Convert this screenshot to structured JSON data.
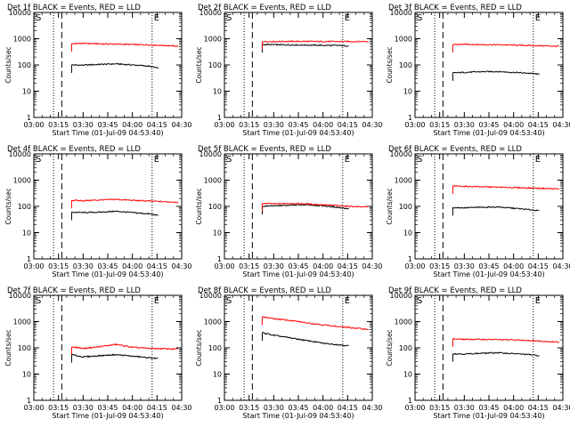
{
  "figure": {
    "background": "#ffffff",
    "ink_color": "#000000",
    "colors": {
      "events": "#000000",
      "lld": "#ff0000"
    },
    "x_tick_labels": [
      "03:00",
      "03:15",
      "03:30",
      "03:45",
      "04:00",
      "04:15",
      "04:30"
    ],
    "y_tick_labels": [
      "1",
      "10",
      "100",
      "1000",
      "10000"
    ]
  },
  "chart_data": [
    {
      "type": "line",
      "title": "Det 1f BLACK = Events, RED = LLD",
      "xlabel": "Start Time (01-Jul-09 04:53:40)",
      "ylabel": "Counts/sec",
      "xlim": [
        "03:00",
        "04:30"
      ],
      "ylim": [
        1,
        10000
      ],
      "y_scale": "log",
      "start_marker": "S",
      "end_marker": "E",
      "vlines_dotted": [
        "03:12",
        "04:12"
      ],
      "vlines_dashed": [
        "03:17"
      ],
      "series": [
        {
          "name": "Events",
          "color": "#000000",
          "x": [
            "03:23",
            "03:30",
            "03:40",
            "03:50",
            "04:00",
            "04:10",
            "04:16"
          ],
          "y": [
            100,
            98,
            105,
            110,
            100,
            90,
            75
          ]
        },
        {
          "name": "LLD",
          "color": "#ff0000",
          "x": [
            "03:23",
            "03:30",
            "03:40",
            "03:50",
            "04:00",
            "04:10",
            "04:20",
            "04:28"
          ],
          "y": [
            650,
            660,
            640,
            620,
            600,
            580,
            550,
            520
          ]
        }
      ]
    },
    {
      "type": "line",
      "title": "Det 2f BLACK = Events, RED = LLD",
      "xlabel": "Start Time (01-Jul-09 04:53:40)",
      "ylabel": "Counts/sec",
      "xlim": [
        "03:00",
        "04:30"
      ],
      "ylim": [
        1,
        10000
      ],
      "y_scale": "log",
      "start_marker": "S",
      "end_marker": "E",
      "vlines_dotted": [
        "03:12",
        "04:12"
      ],
      "vlines_dashed": [
        "03:17"
      ],
      "series": [
        {
          "name": "Events",
          "color": "#000000",
          "x": [
            "03:23",
            "03:30",
            "03:40",
            "03:50",
            "04:00",
            "04:10",
            "04:16"
          ],
          "y": [
            600,
            590,
            580,
            570,
            560,
            550,
            530
          ]
        },
        {
          "name": "LLD",
          "color": "#ff0000",
          "x": [
            "03:23",
            "03:30",
            "03:40",
            "03:50",
            "04:00",
            "04:10",
            "04:20",
            "04:28"
          ],
          "y": [
            780,
            780,
            790,
            790,
            780,
            780,
            780,
            780
          ]
        }
      ]
    },
    {
      "type": "line",
      "title": "Det 3f BLACK = Events, RED = LLD",
      "xlabel": "Start Time (01-Jul-09 04:53:40)",
      "ylabel": "Counts/sec",
      "xlim": [
        "03:00",
        "04:30"
      ],
      "ylim": [
        1,
        10000
      ],
      "y_scale": "log",
      "start_marker": "S",
      "end_marker": "E",
      "vlines_dotted": [
        "03:12",
        "04:12"
      ],
      "vlines_dashed": [
        "03:17"
      ],
      "series": [
        {
          "name": "Events",
          "color": "#000000",
          "x": [
            "03:23",
            "03:30",
            "03:40",
            "03:50",
            "04:00",
            "04:10",
            "04:16"
          ],
          "y": [
            50,
            52,
            55,
            56,
            52,
            48,
            44
          ]
        },
        {
          "name": "LLD",
          "color": "#ff0000",
          "x": [
            "03:23",
            "03:30",
            "03:40",
            "03:50",
            "04:00",
            "04:10",
            "04:20",
            "04:28"
          ],
          "y": [
            600,
            610,
            600,
            590,
            570,
            550,
            530,
            510
          ]
        }
      ]
    },
    {
      "type": "line",
      "title": "Det 4f BLACK = Events, RED = LLD",
      "xlabel": "Start Time (01-Jul-09 04:53:40)",
      "ylabel": "Counts/sec",
      "xlim": [
        "03:00",
        "04:30"
      ],
      "ylim": [
        1,
        10000
      ],
      "y_scale": "log",
      "start_marker": "S",
      "end_marker": "E",
      "vlines_dotted": [
        "03:12",
        "04:12"
      ],
      "vlines_dashed": [
        "03:17"
      ],
      "series": [
        {
          "name": "Events",
          "color": "#000000",
          "x": [
            "03:23",
            "03:30",
            "03:40",
            "03:50",
            "04:00",
            "04:10",
            "04:16"
          ],
          "y": [
            60,
            58,
            60,
            65,
            58,
            52,
            45
          ]
        },
        {
          "name": "LLD",
          "color": "#ff0000",
          "x": [
            "03:23",
            "03:30",
            "03:40",
            "03:50",
            "04:00",
            "04:10",
            "04:20",
            "04:28"
          ],
          "y": [
            170,
            165,
            175,
            185,
            170,
            160,
            150,
            145
          ]
        }
      ]
    },
    {
      "type": "line",
      "title": "Det 5f BLACK = Events, RED = LLD",
      "xlabel": "Start Time (01-Jul-09 04:53:40)",
      "ylabel": "Counts/sec",
      "xlim": [
        "03:00",
        "04:30"
      ],
      "ylim": [
        1,
        10000
      ],
      "y_scale": "log",
      "start_marker": "S",
      "end_marker": "E",
      "vlines_dotted": [
        "03:12",
        "04:12"
      ],
      "vlines_dashed": [
        "03:17"
      ],
      "series": [
        {
          "name": "Events",
          "color": "#000000",
          "x": [
            "03:23",
            "03:30",
            "03:40",
            "03:50",
            "04:00",
            "04:10",
            "04:16"
          ],
          "y": [
            100,
            105,
            110,
            115,
            105,
            90,
            80
          ]
        },
        {
          "name": "LLD",
          "color": "#ff0000",
          "x": [
            "03:23",
            "03:30",
            "03:40",
            "03:50",
            "04:00",
            "04:10",
            "04:20",
            "04:28"
          ],
          "y": [
            130,
            125,
            130,
            125,
            115,
            105,
            98,
            95
          ]
        }
      ]
    },
    {
      "type": "line",
      "title": "Det 6f BLACK = Events, RED = LLD",
      "xlabel": "Start Time (01-Jul-09 04:53:40)",
      "ylabel": "Counts/sec",
      "xlim": [
        "03:00",
        "04:30"
      ],
      "ylim": [
        1,
        10000
      ],
      "y_scale": "log",
      "start_marker": "S",
      "end_marker": "E",
      "vlines_dotted": [
        "03:12",
        "04:12"
      ],
      "vlines_dashed": [
        "03:17"
      ],
      "series": [
        {
          "name": "Events",
          "color": "#000000",
          "x": [
            "03:23",
            "03:30",
            "03:40",
            "03:50",
            "04:00",
            "04:10",
            "04:16"
          ],
          "y": [
            90,
            88,
            92,
            95,
            85,
            75,
            68
          ]
        },
        {
          "name": "LLD",
          "color": "#ff0000",
          "x": [
            "03:23",
            "03:30",
            "03:40",
            "03:50",
            "04:00",
            "04:10",
            "04:20",
            "04:28"
          ],
          "y": [
            600,
            580,
            560,
            540,
            520,
            500,
            480,
            460
          ]
        }
      ]
    },
    {
      "type": "line",
      "title": "Det 7f BLACK = Events, RED = LLD",
      "xlabel": "Start Time (01-Jul-09 04:53:40)",
      "ylabel": "Counts/sec",
      "xlim": [
        "03:00",
        "04:30"
      ],
      "ylim": [
        1,
        10000
      ],
      "y_scale": "log",
      "start_marker": "S",
      "end_marker": "E",
      "vlines_dotted": [
        "03:12",
        "04:12"
      ],
      "vlines_dashed": [
        "03:17"
      ],
      "series": [
        {
          "name": "Events",
          "color": "#000000",
          "x": [
            "03:23",
            "03:30",
            "03:40",
            "03:50",
            "04:00",
            "04:10",
            "04:16"
          ],
          "y": [
            55,
            45,
            50,
            55,
            48,
            42,
            38
          ]
        },
        {
          "name": "LLD",
          "color": "#ff0000",
          "x": [
            "03:23",
            "03:30",
            "03:40",
            "03:50",
            "04:00",
            "04:10",
            "04:20",
            "04:28"
          ],
          "y": [
            110,
            95,
            110,
            135,
            105,
            95,
            92,
            90
          ]
        }
      ]
    },
    {
      "type": "line",
      "title": "Det 8f BLACK = Events, RED = LLD",
      "xlabel": "Start Time (01-Jul-09 04:53:40)",
      "ylabel": "Counts/sec",
      "xlim": [
        "03:00",
        "04:30"
      ],
      "ylim": [
        1,
        10000
      ],
      "y_scale": "log",
      "start_marker": "S",
      "end_marker": "E",
      "vlines_dotted": [
        "03:12",
        "04:12"
      ],
      "vlines_dashed": [
        "03:17"
      ],
      "series": [
        {
          "name": "Events",
          "color": "#000000",
          "x": [
            "03:23",
            "03:30",
            "03:40",
            "03:50",
            "04:00",
            "04:10",
            "04:16"
          ],
          "y": [
            380,
            300,
            240,
            190,
            150,
            130,
            120
          ]
        },
        {
          "name": "LLD",
          "color": "#ff0000",
          "x": [
            "03:23",
            "03:30",
            "03:40",
            "03:50",
            "04:00",
            "04:10",
            "04:20",
            "04:28"
          ],
          "y": [
            1500,
            1300,
            1100,
            900,
            750,
            640,
            560,
            500
          ]
        }
      ]
    },
    {
      "type": "line",
      "title": "Det 9f BLACK = Events, RED = LLD",
      "xlabel": "Start Time (01-Jul-09 04:53:40)",
      "ylabel": "Counts/sec",
      "xlim": [
        "03:00",
        "04:30"
      ],
      "ylim": [
        1,
        10000
      ],
      "y_scale": "log",
      "start_marker": "S",
      "end_marker": "E",
      "vlines_dotted": [
        "03:12",
        "04:12"
      ],
      "vlines_dashed": [
        "03:17"
      ],
      "series": [
        {
          "name": "Events",
          "color": "#000000",
          "x": [
            "03:23",
            "03:30",
            "03:40",
            "03:50",
            "04:00",
            "04:10",
            "04:16"
          ],
          "y": [
            60,
            58,
            62,
            65,
            60,
            55,
            50
          ]
        },
        {
          "name": "LLD",
          "color": "#ff0000",
          "x": [
            "03:23",
            "03:30",
            "03:40",
            "03:50",
            "04:00",
            "04:10",
            "04:20",
            "04:28"
          ],
          "y": [
            220,
            210,
            210,
            205,
            200,
            190,
            175,
            165
          ]
        }
      ]
    }
  ]
}
